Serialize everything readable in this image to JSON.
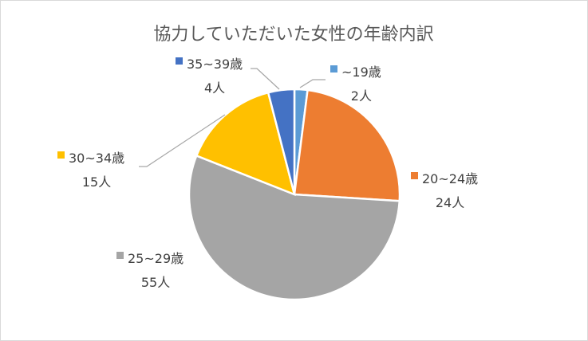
{
  "chart_data": {
    "type": "pie",
    "title": "協力していただいた女性の年齢内訳",
    "categories": [
      "~19歳",
      "20~24歳",
      "25~29歳",
      "30~34歳",
      "35~39歳"
    ],
    "values": [
      2,
      24,
      55,
      15,
      4
    ],
    "value_labels": [
      "2人",
      "24人",
      "55人",
      "15人",
      "4人"
    ],
    "colors": [
      "#5B9BD5",
      "#ED7D31",
      "#A5A5A5",
      "#FFC000",
      "#4472C4"
    ],
    "legend": "none",
    "data_labels": "category-and-value-outside"
  }
}
